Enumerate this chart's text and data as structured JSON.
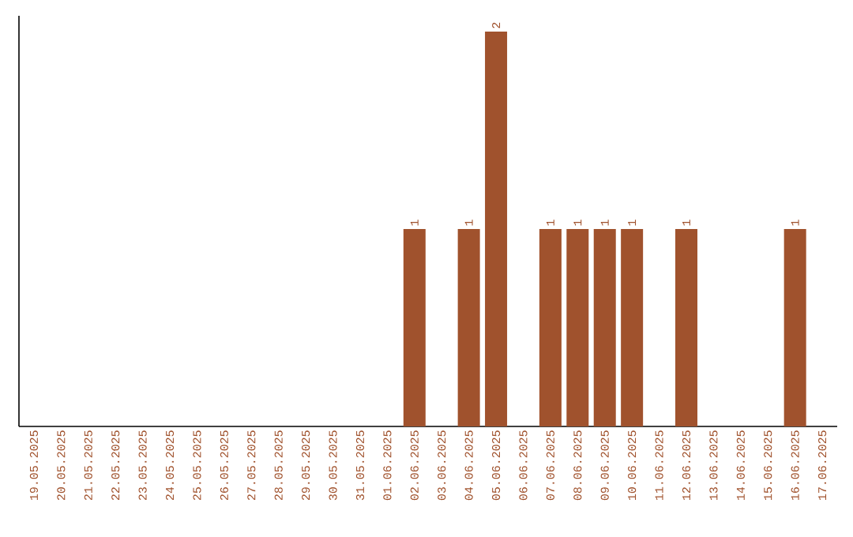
{
  "chart_data": {
    "type": "bar",
    "categories": [
      "19.05.2025",
      "20.05.2025",
      "21.05.2025",
      "22.05.2025",
      "23.05.2025",
      "24.05.2025",
      "25.05.2025",
      "26.05.2025",
      "27.05.2025",
      "28.05.2025",
      "29.05.2025",
      "30.05.2025",
      "31.05.2025",
      "01.06.2025",
      "02.06.2025",
      "03.06.2025",
      "04.06.2025",
      "05.06.2025",
      "06.06.2025",
      "07.06.2025",
      "08.06.2025",
      "09.06.2025",
      "10.06.2025",
      "11.06.2025",
      "12.06.2025",
      "13.06.2025",
      "14.06.2025",
      "15.06.2025",
      "16.06.2025",
      "17.06.2025"
    ],
    "values": [
      null,
      null,
      null,
      null,
      null,
      null,
      null,
      null,
      null,
      null,
      null,
      null,
      null,
      null,
      1,
      null,
      1,
      2,
      null,
      1,
      1,
      1,
      1,
      null,
      1,
      null,
      null,
      null,
      1,
      null
    ],
    "data_labels": true,
    "color": "#a0522d",
    "tick_labels": "x"
  }
}
